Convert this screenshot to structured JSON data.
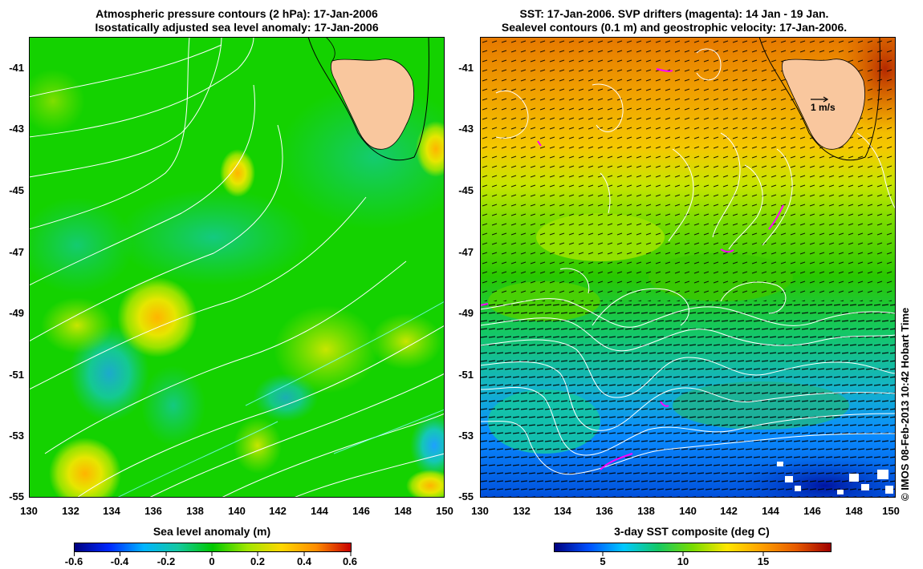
{
  "left_panel": {
    "title_line1": "Atmospheric pressure contours (2 hPa): 17-Jan-2006",
    "title_line2": "Isostatically adjusted sea level anomaly: 17-Jan-2006",
    "y_ticks": [
      "-41",
      "-43",
      "-45",
      "-47",
      "-49",
      "-51",
      "-53",
      "-55"
    ],
    "x_ticks": [
      "130",
      "132",
      "134",
      "136",
      "138",
      "140",
      "142",
      "144",
      "146",
      "148",
      "150"
    ],
    "colorbar": {
      "title": "Sea level anomaly (m)",
      "ticks": [
        "-0.6",
        "-0.4",
        "-0.2",
        "0",
        "0.2",
        "0.4",
        "0.6"
      ]
    }
  },
  "right_panel": {
    "title_line1": "SST: 17-Jan-2006. SVP drifters (magenta): 14 Jan - 19 Jan.",
    "title_line2": "Sealevel contours (0.1 m) and geostrophic velocity: 17-Jan-2006.",
    "y_ticks": [
      "-41",
      "-43",
      "-45",
      "-47",
      "-49",
      "-51",
      "-53",
      "-55"
    ],
    "x_ticks": [
      "130",
      "132",
      "134",
      "136",
      "138",
      "140",
      "142",
      "144",
      "146",
      "148",
      "150"
    ],
    "velocity_scale_label": "1 m/s",
    "colorbar": {
      "title": "3-day SST composite (deg C)",
      "ticks": [
        "5",
        "10",
        "15"
      ]
    }
  },
  "credit": "© IMOS 08-Feb-2013 10:42 Hobart Time",
  "colors": {
    "land": "#f9c79e",
    "contour": "#ffffff",
    "drifter": "#ff00ff",
    "sla_ramp": [
      "#00007f",
      "#1464ff",
      "#00c8ff",
      "#14c864",
      "#00c800",
      "#a0e600",
      "#ffd700",
      "#ff8c00",
      "#c80000"
    ],
    "sst_ramp": [
      "#00007f",
      "#0050ff",
      "#00c8ff",
      "#14c864",
      "#78dc00",
      "#ffe600",
      "#ffa000",
      "#e65a00",
      "#a00000"
    ]
  }
}
